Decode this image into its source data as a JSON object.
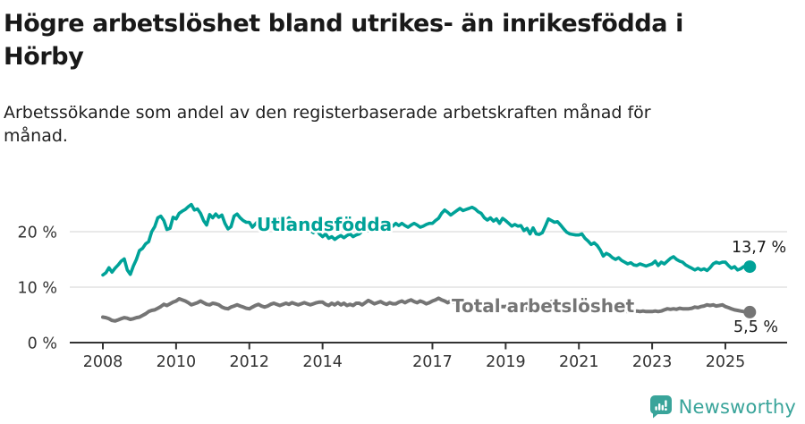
{
  "header": {
    "title_lines": [
      "Högre arbetslöshet bland utrikes- än inrikesfödda i",
      "Hörby"
    ],
    "subtitle_lines": [
      "Arbetssökande som andel av den registerbaserade arbetskraften månad för",
      "månad."
    ]
  },
  "footer": {
    "brand": "Newsworthy",
    "icon": "newsworthy-speech-bubble-bar-chart-icon",
    "brand_color": "#39a49a"
  },
  "chart_data": {
    "type": "line",
    "title": "Högre arbetslöshet bland utrikes- än inrikesfödda i Hörby",
    "subtitle": "Arbetssökande som andel av den registerbaserade arbetskraften månad för månad.",
    "x_unit": "year",
    "frequency": "monthly",
    "x_start_year": 2008,
    "x_ticks": [
      2008,
      2010,
      2012,
      2014,
      2017,
      2019,
      2021,
      2023,
      2025
    ],
    "y_ticks": [
      {
        "value": 0,
        "label": "0 %"
      },
      {
        "value": 10,
        "label": "10 %"
      },
      {
        "value": 20,
        "label": "20 %"
      }
    ],
    "ylim": [
      0,
      26
    ],
    "grid": "horizontal",
    "legend_position": "inline-labels",
    "axis_color": "#333333",
    "grid_color": "#dcdcdc",
    "series": [
      {
        "name": "Utlandsfödda",
        "color": "#00a298",
        "end_label": "13,7 %",
        "last_value": 13.7,
        "values": [
          12.2,
          12.6,
          13.5,
          12.7,
          13.4,
          14.0,
          14.7,
          15.1,
          13.1,
          12.3,
          13.8,
          15.0,
          16.6,
          17.0,
          17.8,
          18.2,
          20.0,
          20.9,
          22.5,
          22.8,
          22.0,
          20.4,
          20.6,
          22.6,
          22.3,
          23.3,
          23.7,
          24.0,
          24.5,
          24.9,
          23.9,
          24.1,
          23.3,
          22.0,
          21.2,
          23.1,
          22.5,
          23.2,
          22.6,
          23.0,
          21.5,
          20.5,
          20.9,
          22.8,
          23.2,
          22.5,
          22.0,
          21.7,
          21.7,
          20.8,
          21.4,
          22.0,
          22.6,
          22.2,
          21.5,
          20.9,
          21.8,
          22.4,
          22.0,
          21.3,
          21.9,
          22.5,
          21.8,
          21.2,
          20.5,
          21.0,
          21.6,
          20.8,
          20.2,
          19.8,
          20.4,
          19.6,
          19.1,
          19.6,
          18.8,
          19.1,
          18.6,
          19.0,
          19.3,
          18.9,
          19.3,
          19.6,
          19.1,
          19.4,
          19.6,
          20.1,
          20.6,
          20.2,
          20.8,
          21.2,
          20.8,
          20.5,
          20.9,
          21.2,
          20.8,
          21.0,
          21.5,
          21.1,
          21.5,
          21.1,
          20.8,
          21.2,
          21.5,
          21.2,
          20.8,
          21.0,
          21.3,
          21.5,
          21.5,
          22.0,
          22.4,
          23.3,
          23.9,
          23.5,
          23.0,
          23.4,
          23.8,
          24.2,
          23.8,
          24.0,
          24.2,
          24.4,
          24.1,
          23.6,
          23.3,
          22.5,
          22.1,
          22.5,
          21.9,
          22.3,
          21.5,
          22.4,
          22.0,
          21.5,
          21.0,
          21.3,
          21.0,
          21.1,
          20.2,
          20.6,
          19.6,
          20.7,
          19.6,
          19.5,
          19.8,
          21.0,
          22.3,
          22.0,
          21.7,
          21.8,
          21.2,
          20.5,
          19.9,
          19.6,
          19.5,
          19.4,
          19.4,
          19.6,
          18.8,
          18.3,
          17.7,
          18.0,
          17.5,
          16.7,
          15.6,
          16.1,
          15.8,
          15.3,
          15.0,
          15.3,
          14.8,
          14.5,
          14.2,
          14.4,
          14.0,
          13.9,
          14.2,
          14.0,
          13.8,
          14.0,
          14.2,
          14.7,
          13.9,
          14.5,
          14.2,
          14.7,
          15.2,
          15.5,
          15.0,
          14.7,
          14.5,
          14.0,
          13.7,
          13.4,
          13.1,
          13.4,
          13.1,
          13.3,
          13.0,
          13.5,
          14.2,
          14.5,
          14.3,
          14.5,
          14.5,
          13.9,
          13.4,
          13.7,
          13.1,
          13.3,
          13.7,
          13.5,
          13.7
        ]
      },
      {
        "name": "Total arbetslöshet",
        "color": "#757575",
        "end_label": "5,5 %",
        "last_value": 5.5,
        "values": [
          4.6,
          4.5,
          4.3,
          4.0,
          3.9,
          4.1,
          4.3,
          4.5,
          4.4,
          4.2,
          4.3,
          4.5,
          4.6,
          4.9,
          5.2,
          5.6,
          5.8,
          5.9,
          6.2,
          6.5,
          6.9,
          6.7,
          7.0,
          7.3,
          7.5,
          7.9,
          7.7,
          7.5,
          7.2,
          6.8,
          7.0,
          7.2,
          7.5,
          7.2,
          6.9,
          6.8,
          7.1,
          7.0,
          6.8,
          6.4,
          6.2,
          6.1,
          6.4,
          6.6,
          6.8,
          6.6,
          6.4,
          6.2,
          6.1,
          6.4,
          6.7,
          6.9,
          6.6,
          6.4,
          6.6,
          6.9,
          7.1,
          6.9,
          6.7,
          6.9,
          7.1,
          6.9,
          7.2,
          7.0,
          6.8,
          7.0,
          7.2,
          7.0,
          6.8,
          7.0,
          7.2,
          7.3,
          7.3,
          6.9,
          6.7,
          7.1,
          6.8,
          7.2,
          6.8,
          7.1,
          6.7,
          6.9,
          6.7,
          7.1,
          7.1,
          6.8,
          7.2,
          7.6,
          7.3,
          7.0,
          7.2,
          7.4,
          7.1,
          6.9,
          7.2,
          7.0,
          7.0,
          7.3,
          7.5,
          7.2,
          7.5,
          7.7,
          7.4,
          7.2,
          7.5,
          7.3,
          7.0,
          7.2,
          7.5,
          7.7,
          8.0,
          7.7,
          7.5,
          7.2,
          7.5,
          7.3,
          7.0,
          7.2,
          7.0,
          6.9,
          6.9,
          6.7,
          6.9,
          6.7,
          6.9,
          6.7,
          6.5,
          6.7,
          6.5,
          6.7,
          6.5,
          6.5,
          6.5,
          6.7,
          6.4,
          6.3,
          6.4,
          6.2,
          6.0,
          6.2,
          6.0,
          6.2,
          6.4,
          6.6,
          6.4,
          6.6,
          7.0,
          7.4,
          7.3,
          7.2,
          7.1,
          7.0,
          6.9,
          6.8,
          6.9,
          6.8,
          6.8,
          6.6,
          6.5,
          6.6,
          6.4,
          6.2,
          6.1,
          5.9,
          5.9,
          5.8,
          5.7,
          5.8,
          5.7,
          5.6,
          5.6,
          5.7,
          5.6,
          5.5,
          5.6,
          5.7,
          5.6,
          5.7,
          5.6,
          5.6,
          5.6,
          5.7,
          5.6,
          5.7,
          5.9,
          6.1,
          6.0,
          6.1,
          6.0,
          6.2,
          6.1,
          6.1,
          6.1,
          6.2,
          6.4,
          6.3,
          6.5,
          6.6,
          6.8,
          6.7,
          6.8,
          6.6,
          6.7,
          6.8,
          6.5,
          6.3,
          6.1,
          5.9,
          5.8,
          5.7,
          5.6,
          5.5,
          5.5
        ]
      }
    ]
  }
}
